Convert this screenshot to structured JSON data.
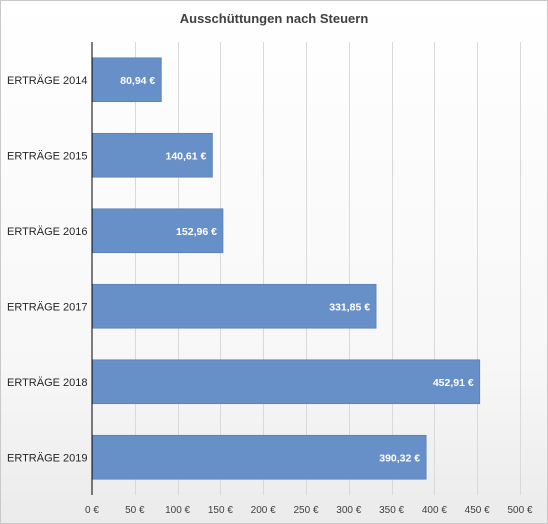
{
  "chart_data": {
    "type": "bar",
    "orientation": "horizontal",
    "title": "Ausschüttungen nach Steuern",
    "xlabel": "",
    "ylabel": "",
    "categories": [
      "ERTRÄGE 2014",
      "ERTRÄGE 2015",
      "ERTRÄGE 2016",
      "ERTRÄGE 2017",
      "ERTRÄGE 2018",
      "ERTRÄGE 2019"
    ],
    "values": [
      80.94,
      140.61,
      152.96,
      331.85,
      452.91,
      390.32
    ],
    "data_labels": [
      "80,94 €",
      "140,61 €",
      "152,96 €",
      "331,85 €",
      "452,91 €",
      "390,32 €"
    ],
    "xlim": [
      0,
      500
    ],
    "x_ticks": [
      0,
      50,
      100,
      150,
      200,
      250,
      300,
      350,
      400,
      450,
      500
    ],
    "x_tick_labels": [
      "0 €",
      "50 €",
      "100 €",
      "150 €",
      "200 €",
      "250 €",
      "300 €",
      "350 €",
      "400 €",
      "450 €",
      "500 €"
    ],
    "grid": "vertical",
    "legend": "none",
    "bar_color": "#6890c8",
    "bar_border_color": "#5a7fb8",
    "grid_color": "#d9d9d9"
  }
}
